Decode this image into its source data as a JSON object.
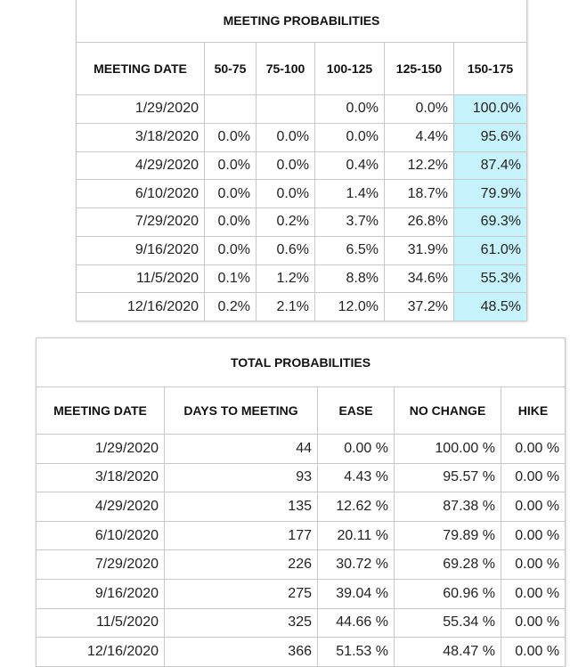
{
  "meeting": {
    "title": "MEETING PROBABILITIES",
    "headers": [
      "MEETING DATE",
      "50-75",
      "75-100",
      "100-125",
      "125-150",
      "150-175"
    ],
    "rows": [
      [
        "1/29/2020",
        "",
        "",
        "0.0%",
        "0.0%",
        "100.0%"
      ],
      [
        "3/18/2020",
        "0.0%",
        "0.0%",
        "0.0%",
        "4.4%",
        "95.6%"
      ],
      [
        "4/29/2020",
        "0.0%",
        "0.0%",
        "0.4%",
        "12.2%",
        "87.4%"
      ],
      [
        "6/10/2020",
        "0.0%",
        "0.0%",
        "1.4%",
        "18.7%",
        "79.9%"
      ],
      [
        "7/29/2020",
        "0.0%",
        "0.2%",
        "3.7%",
        "26.8%",
        "69.3%"
      ],
      [
        "9/16/2020",
        "0.0%",
        "0.6%",
        "6.5%",
        "31.9%",
        "61.0%"
      ],
      [
        "11/5/2020",
        "0.1%",
        "1.2%",
        "8.8%",
        "34.6%",
        "55.3%"
      ],
      [
        "12/16/2020",
        "0.2%",
        "2.1%",
        "12.0%",
        "37.2%",
        "48.5%"
      ]
    ],
    "highlight_color": "#c6f2fb"
  },
  "total": {
    "title": "TOTAL PROBABILITIES",
    "headers": [
      "MEETING DATE",
      "DAYS TO MEETING",
      "EASE",
      "NO CHANGE",
      "HIKE"
    ],
    "rows": [
      [
        "1/29/2020",
        "44",
        "0.00 %",
        "100.00 %",
        "0.00 %"
      ],
      [
        "3/18/2020",
        "93",
        "4.43 %",
        "95.57 %",
        "0.00 %"
      ],
      [
        "4/29/2020",
        "135",
        "12.62 %",
        "87.38 %",
        "0.00 %"
      ],
      [
        "6/10/2020",
        "177",
        "20.11 %",
        "79.89 %",
        "0.00 %"
      ],
      [
        "7/29/2020",
        "226",
        "30.72 %",
        "69.28 %",
        "0.00 %"
      ],
      [
        "9/16/2020",
        "275",
        "39.04 %",
        "60.96 %",
        "0.00 %"
      ],
      [
        "11/5/2020",
        "325",
        "44.66 %",
        "55.34 %",
        "0.00 %"
      ],
      [
        "12/16/2020",
        "366",
        "51.53 %",
        "48.47 %",
        "0.00 %"
      ]
    ]
  }
}
